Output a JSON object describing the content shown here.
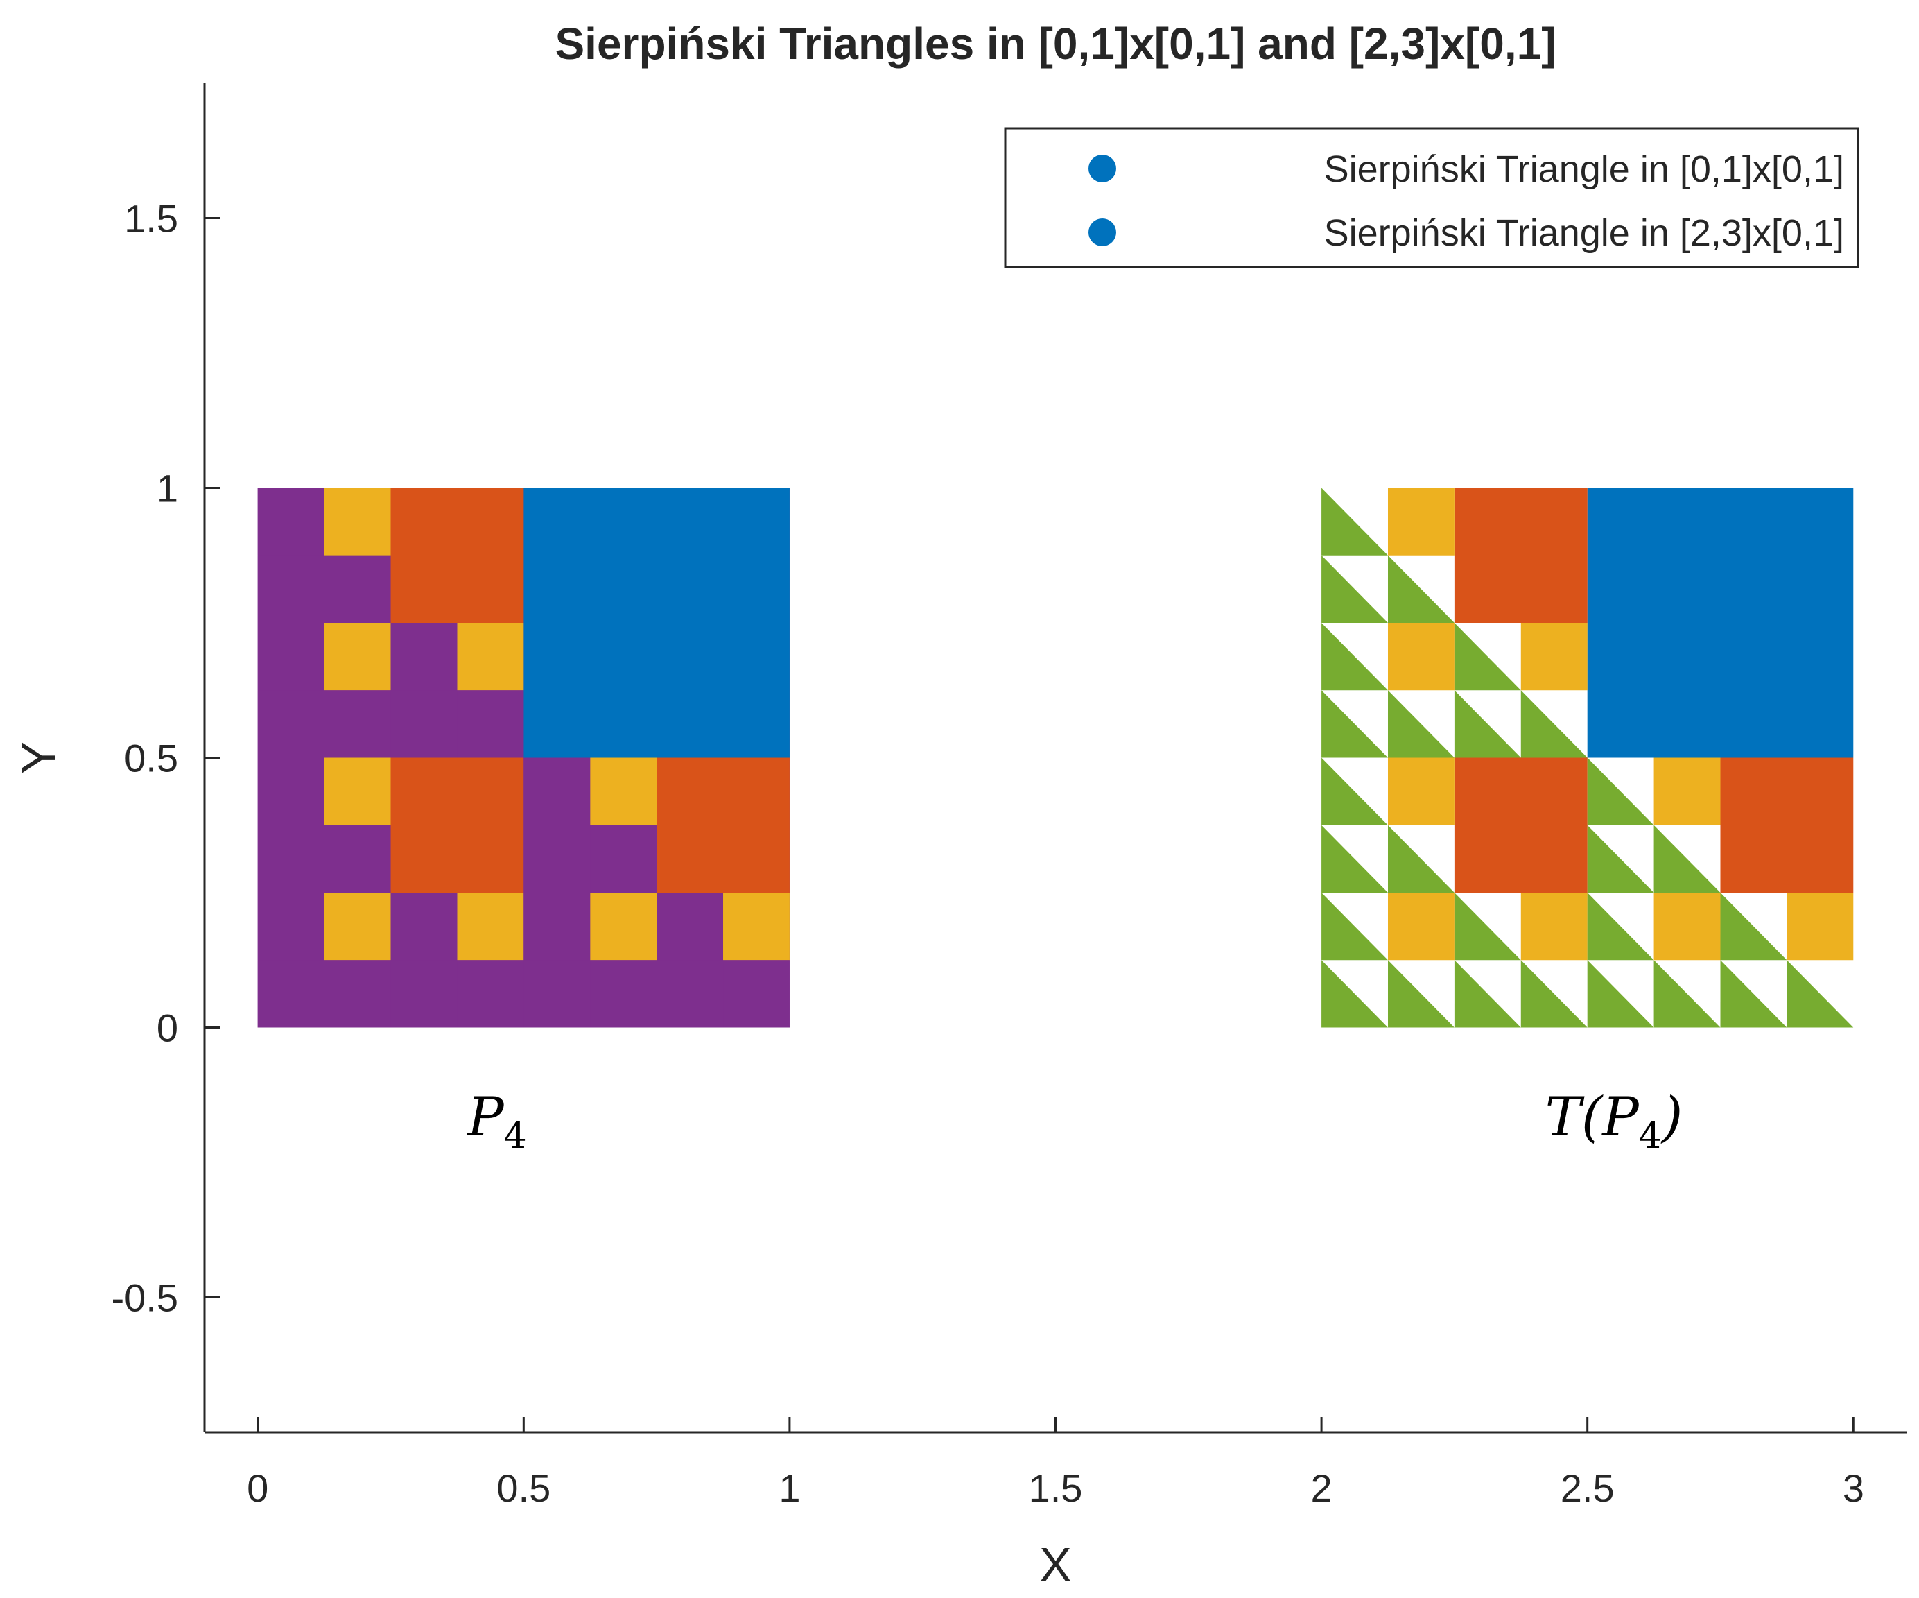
{
  "chart_data": {
    "type": "scatter",
    "title": "Sierpiński Triangles in [0,1]x[0,1] and [2,3]x[0,1]",
    "xlabel": "X",
    "ylabel": "Y",
    "xlim": [
      -0.1,
      3.1
    ],
    "ylim": [
      -0.75,
      1.75
    ],
    "xticks": [
      0,
      0.5,
      1,
      1.5,
      2,
      2.5,
      3
    ],
    "xtick_labels": [
      "0",
      "0.5",
      "1",
      "1.5",
      "2",
      "2.5",
      "3"
    ],
    "yticks": [
      -0.5,
      0,
      0.5,
      1,
      1.5
    ],
    "ytick_labels": [
      "-0.5",
      "0",
      "0.5",
      "1",
      "1.5"
    ],
    "grid": false,
    "legend_position": "top-right",
    "series": [
      {
        "name": "Sierpiński Triangle in [0,1]x[0,1]",
        "color": "#0072BD",
        "x_range": [
          0,
          1
        ],
        "y_range": [
          0,
          1
        ]
      },
      {
        "name": "Sierpiński Triangle in [2,3]x[0,1]",
        "color": "#0072BD",
        "x_range": [
          2,
          3
        ],
        "y_range": [
          0,
          1
        ]
      }
    ],
    "fill_colors": {
      "level_4": "#0072BD",
      "level_3": "#D95319",
      "level_2": "#EDB120",
      "base_left": "#7E2F8E",
      "base_right": "#77AC30"
    },
    "annotations": [
      {
        "main": "P",
        "sub": "4",
        "x": 0.45,
        "y": -0.2
      },
      {
        "main": "T(P",
        "sub": "4",
        "suffix": ")",
        "x": 2.55,
        "y": -0.2
      }
    ]
  }
}
